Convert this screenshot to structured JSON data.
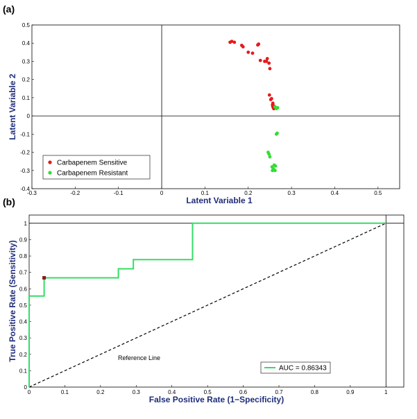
{
  "chart_data": [
    {
      "type": "scatter",
      "panel_label": "(a)",
      "xlabel": "Latent Variable 1",
      "ylabel": "Latent Variable 2",
      "xlim": [
        -0.3,
        0.55
      ],
      "ylim": [
        -0.4,
        0.5
      ],
      "xticks": [
        "-0.3",
        "-0.2",
        "-0.1",
        "0",
        "0.1",
        "0.2",
        "0.3",
        "0.4",
        "0.5"
      ],
      "yticks": [
        "-0.4",
        "-0.3",
        "-0.2",
        "-0.1",
        "0",
        "0.1",
        "0.2",
        "0.3",
        "0.4",
        "0.5"
      ],
      "legend_position": "bottom-left",
      "series": [
        {
          "name": "Carbapenem Sensitive",
          "color": "#e41a1c",
          "points": [
            [
              0.158,
              0.405
            ],
            [
              0.162,
              0.41
            ],
            [
              0.168,
              0.405
            ],
            [
              0.185,
              0.388
            ],
            [
              0.188,
              0.38
            ],
            [
              0.2,
              0.35
            ],
            [
              0.21,
              0.345
            ],
            [
              0.222,
              0.39
            ],
            [
              0.224,
              0.395
            ],
            [
              0.228,
              0.305
            ],
            [
              0.238,
              0.3
            ],
            [
              0.242,
              0.3
            ],
            [
              0.244,
              0.315
            ],
            [
              0.248,
              0.29
            ],
            [
              0.25,
              0.26
            ],
            [
              0.249,
              0.115
            ],
            [
              0.252,
              0.09
            ],
            [
              0.254,
              0.095
            ],
            [
              0.256,
              0.06
            ],
            [
              0.257,
              0.05
            ],
            [
              0.258,
              0.045
            ],
            [
              0.259,
              0.04
            ],
            [
              0.26,
              0.045
            ],
            [
              0.257,
              0.07
            ],
            [
              0.259,
              0.055
            ]
          ]
        },
        {
          "name": "Carbapenem Resistant",
          "color": "#33dd33",
          "points": [
            [
              0.265,
              0.04
            ],
            [
              0.268,
              0.045
            ],
            [
              0.262,
              0.05
            ],
            [
              0.265,
              -0.1
            ],
            [
              0.267,
              -0.095
            ],
            [
              0.246,
              -0.2
            ],
            [
              0.25,
              -0.225
            ],
            [
              0.248,
              -0.21
            ],
            [
              0.255,
              -0.28
            ],
            [
              0.258,
              -0.29
            ],
            [
              0.26,
              -0.27
            ],
            [
              0.262,
              -0.3
            ],
            [
              0.263,
              -0.275
            ],
            [
              0.256,
              -0.3
            ]
          ]
        }
      ]
    },
    {
      "type": "line",
      "panel_label": "(b)",
      "xlabel": "False Positive Rate (1−Specificity)",
      "ylabel": "True Positive Rate (Sensitivity)",
      "xlim": [
        0,
        1.05
      ],
      "ylim": [
        0,
        1.05
      ],
      "xticks": [
        "0",
        "0.1",
        "0.2",
        "0.3",
        "0.4",
        "0.5",
        "0.6",
        "0.7",
        "0.8",
        "0.9",
        "1"
      ],
      "yticks": [
        "0",
        "0.1",
        "0.2",
        "0.3",
        "0.4",
        "0.5",
        "0.6",
        "0.7",
        "0.8",
        "0.9",
        "1"
      ],
      "legend_position": "bottom-right",
      "series": [
        {
          "name": "AUC = 0.86343",
          "color": "#33dd66",
          "points": [
            [
              0,
              0
            ],
            [
              0,
              0.556
            ],
            [
              0.042,
              0.556
            ],
            [
              0.042,
              0.667
            ],
            [
              0.25,
              0.667
            ],
            [
              0.25,
              0.722
            ],
            [
              0.292,
              0.722
            ],
            [
              0.292,
              0.778
            ],
            [
              0.458,
              0.778
            ],
            [
              0.458,
              1.0
            ],
            [
              1.0,
              1.0
            ]
          ]
        }
      ],
      "reference_line": {
        "points": [
          [
            0,
            0
          ],
          [
            1,
            1
          ]
        ],
        "color": "#000000"
      },
      "marker": {
        "point": [
          0.042,
          0.667
        ],
        "color": "#8b1a1a"
      },
      "annotations": [
        "Reference Line"
      ]
    }
  ]
}
